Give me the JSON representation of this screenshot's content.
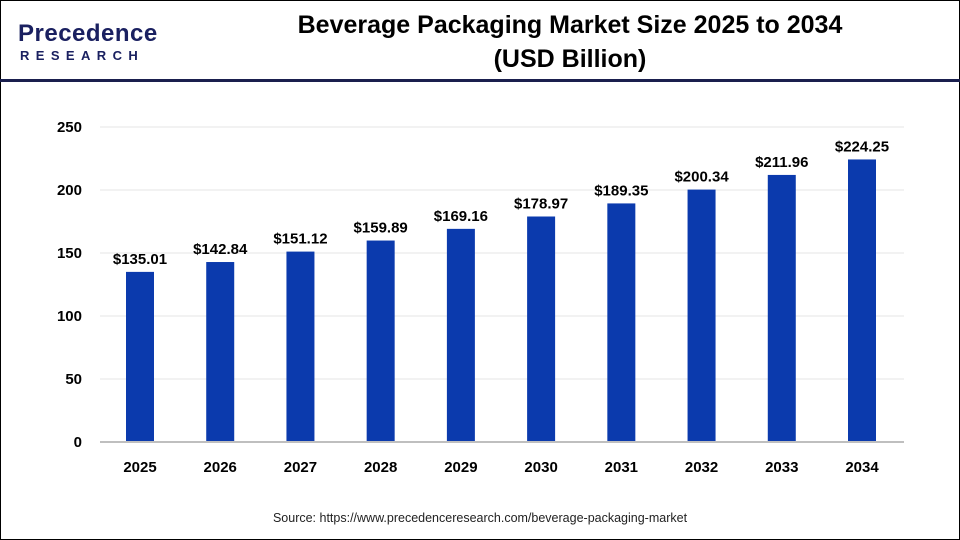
{
  "logo": {
    "text_main": "Precedence",
    "text_sub": "RESEARCH"
  },
  "title_line1": "Beverage Packaging Market Size 2025 to 2034",
  "title_line2": "(USD Billion)",
  "source": "Source: https://www.precedenceresearch.com/beverage-packaging-market",
  "colors": {
    "bar": "#0b3aad",
    "header_line": "#1a1f4e",
    "grid": "#e6e6e6",
    "axis": "#bfbfbf"
  },
  "chart_data": {
    "type": "bar",
    "title": "Beverage Packaging Market Size 2025 to 2034 (USD Billion)",
    "xlabel": "",
    "ylabel": "",
    "categories": [
      "2025",
      "2026",
      "2027",
      "2028",
      "2029",
      "2030",
      "2031",
      "2032",
      "2033",
      "2034"
    ],
    "values": [
      135.01,
      142.84,
      151.12,
      159.89,
      169.16,
      178.97,
      189.35,
      200.34,
      211.96,
      224.25
    ],
    "data_labels": [
      "$135.01",
      "$142.84",
      "$151.12",
      "$159.89",
      "$169.16",
      "$178.97",
      "$189.35",
      "$200.34",
      "$211.96",
      "$224.25"
    ],
    "ylim": [
      0,
      250
    ],
    "yticks": [
      "0",
      "50",
      "100",
      "150",
      "200",
      "250"
    ],
    "grid": true,
    "legend": "none"
  }
}
